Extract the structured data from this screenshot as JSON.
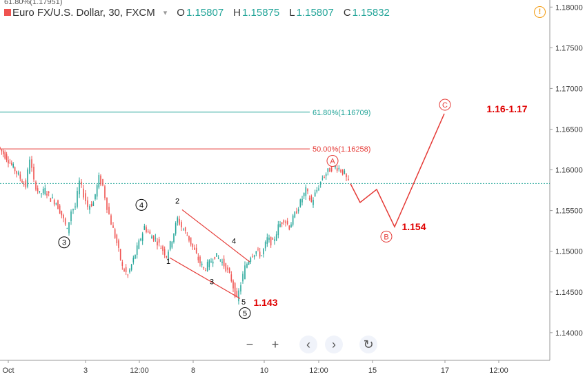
{
  "header": {
    "symbol": "Euro FX/U.S. Dollar, 30, FXCM",
    "open_label": "O",
    "open": "1.15807",
    "high_label": "H",
    "high": "1.15875",
    "low_label": "L",
    "low": "1.15807",
    "close_label": "C",
    "close": "1.15832",
    "overlay_text": "61.80%(1.17951)"
  },
  "chart_data": {
    "type": "candlestick",
    "instrument": "EUR/USD",
    "timeframe": "30",
    "ylim": [
      1.1366,
      1.1807
    ],
    "y_ticks": [
      "1.18000",
      "1.17500",
      "1.17000",
      "1.16500",
      "1.16000",
      "1.15500",
      "1.15000",
      "1.14500",
      "1.14000"
    ],
    "x_ticks": [
      "Oct",
      "3",
      "12:00",
      "8",
      "10",
      "12:00",
      "15",
      "17",
      "12:00"
    ],
    "last_price": 1.15832,
    "price_path": [
      [
        0,
        1.1628
      ],
      [
        0.6,
        1.1615
      ],
      [
        1.2,
        1.16
      ],
      [
        1.6,
        1.159
      ],
      [
        2.0,
        1.158
      ],
      [
        2.3,
        1.1615
      ],
      [
        2.6,
        1.1585
      ],
      [
        3.0,
        1.157
      ],
      [
        3.4,
        1.1575
      ],
      [
        3.8,
        1.1565
      ],
      [
        4.2,
        1.156
      ],
      [
        4.6,
        1.1545
      ],
      [
        5.0,
        1.1525
      ],
      [
        5.3,
        1.155
      ],
      [
        5.6,
        1.1555
      ],
      [
        5.9,
        1.1585
      ],
      [
        6.2,
        1.157
      ],
      [
        6.5,
        1.1555
      ],
      [
        6.9,
        1.156
      ],
      [
        7.3,
        1.159
      ],
      [
        7.6,
        1.158
      ],
      [
        7.9,
        1.1555
      ],
      [
        8.2,
        1.1535
      ],
      [
        8.6,
        1.151
      ],
      [
        9.0,
        1.148
      ],
      [
        9.4,
        1.147
      ],
      [
        9.8,
        1.149
      ],
      [
        10.2,
        1.151
      ],
      [
        10.6,
        1.153
      ],
      [
        11.0,
        1.152
      ],
      [
        11.4,
        1.1515
      ],
      [
        11.8,
        1.1505
      ],
      [
        12.2,
        1.1495
      ],
      [
        12.6,
        1.1515
      ],
      [
        13.0,
        1.154
      ],
      [
        13.3,
        1.153
      ],
      [
        13.7,
        1.152
      ],
      [
        14.1,
        1.1505
      ],
      [
        14.5,
        1.149
      ],
      [
        14.9,
        1.1478
      ],
      [
        15.3,
        1.1485
      ],
      [
        15.7,
        1.1495
      ],
      [
        16.1,
        1.149
      ],
      [
        16.5,
        1.148
      ],
      [
        16.9,
        1.1465
      ],
      [
        17.3,
        1.144
      ],
      [
        17.6,
        1.146
      ],
      [
        17.9,
        1.148
      ],
      [
        18.3,
        1.1495
      ],
      [
        18.7,
        1.15
      ],
      [
        19.1,
        1.1495
      ],
      [
        19.5,
        1.1515
      ],
      [
        19.9,
        1.151
      ],
      [
        20.3,
        1.153
      ],
      [
        20.7,
        1.154
      ],
      [
        21.1,
        1.153
      ],
      [
        21.5,
        1.1545
      ],
      [
        21.9,
        1.156
      ],
      [
        22.3,
        1.1575
      ],
      [
        22.7,
        1.156
      ],
      [
        23.1,
        1.1575
      ],
      [
        23.5,
        1.159
      ],
      [
        23.9,
        1.1598
      ],
      [
        24.3,
        1.1605
      ],
      [
        24.7,
        1.1602
      ],
      [
        25.1,
        1.1595
      ],
      [
        25.4,
        1.1583
      ]
    ],
    "projection_path": [
      [
        25.4,
        1.1583
      ],
      [
        26.1,
        1.156
      ],
      [
        27.3,
        1.1576
      ],
      [
        28.6,
        1.153
      ],
      [
        32.2,
        1.1669
      ]
    ],
    "wedge_upper": [
      [
        13.2,
        1.1551
      ],
      [
        18.1,
        1.1487
      ]
    ],
    "wedge_lower": [
      [
        12.3,
        1.1492
      ],
      [
        17.4,
        1.1442
      ]
    ],
    "fib_levels": [
      {
        "label": "61.80%(1.16709)",
        "value": 1.16709,
        "color": "#26a69a"
      },
      {
        "label": "50.00%(1.16258)",
        "value": 1.16258,
        "color": "#e53935"
      }
    ],
    "wave_labels": [
      {
        "text": "3",
        "x": 4.65,
        "y": 1.1511,
        "circled": true,
        "color": "#000000"
      },
      {
        "text": "4",
        "x": 10.25,
        "y": 1.1557,
        "circled": true,
        "color": "#000000"
      },
      {
        "text": "5",
        "x": 17.75,
        "y": 1.1424,
        "circled": true,
        "color": "#000000"
      },
      {
        "text": "1",
        "x": 12.2,
        "y": 1.1488,
        "circled": false,
        "color": "#000000"
      },
      {
        "text": "2",
        "x": 12.85,
        "y": 1.1562,
        "circled": false,
        "color": "#000000"
      },
      {
        "text": "3",
        "x": 15.35,
        "y": 1.1463,
        "circled": false,
        "color": "#000000"
      },
      {
        "text": "4",
        "x": 16.95,
        "y": 1.1513,
        "circled": false,
        "color": "#000000"
      },
      {
        "text": "5",
        "x": 17.65,
        "y": 1.1438,
        "circled": false,
        "color": "#000000"
      },
      {
        "text": "A",
        "x": 24.1,
        "y": 1.1611,
        "circled": true,
        "color": "#e53935"
      },
      {
        "text": "B",
        "x": 28.0,
        "y": 1.1518,
        "circled": true,
        "color": "#e53935"
      },
      {
        "text": "C",
        "x": 32.25,
        "y": 1.168,
        "circled": true,
        "color": "#e53935"
      }
    ],
    "price_annotations": [
      {
        "text": "1.143",
        "x": 19.25,
        "y": 1.1437,
        "color": "#e00000"
      },
      {
        "text": "1.154",
        "x": 30.0,
        "y": 1.153,
        "color": "#e00000"
      },
      {
        "text": "1.16-1.17",
        "x": 36.75,
        "y": 1.1675,
        "color": "#e00000"
      }
    ],
    "colors": {
      "up": "#26a69a",
      "down": "#ef5350",
      "projection": "#e53935",
      "last_price_line": "#26a69a"
    }
  },
  "controls": {
    "zoom_out": "−",
    "zoom_in": "+",
    "scroll_left": "‹",
    "scroll_right": "›",
    "reset": "↻"
  }
}
